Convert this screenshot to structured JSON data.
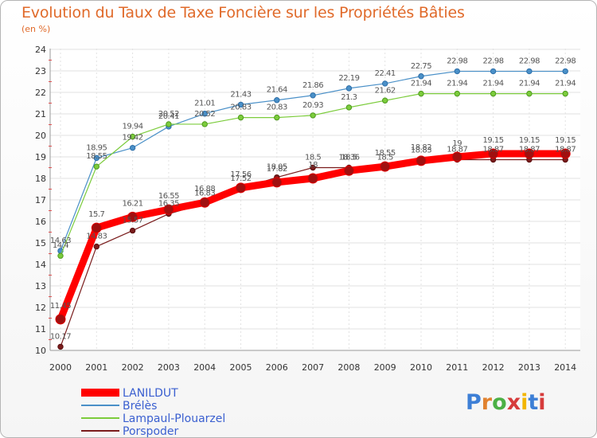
{
  "chart_data": {
    "type": "line",
    "title": "Evolution du Taux de Taxe Foncière sur les Propriétés Bâties",
    "ylabel": "(en %)",
    "xlabel": "",
    "ylim": [
      10,
      24
    ],
    "yticks": [
      "10",
      "11",
      "12",
      "13",
      "14",
      "15",
      "16",
      "17",
      "18",
      "19",
      "20",
      "21",
      "22",
      "23",
      "24"
    ],
    "categories": [
      "2000",
      "2001",
      "2002",
      "2003",
      "2004",
      "2005",
      "2006",
      "2007",
      "2008",
      "2009",
      "2010",
      "2011",
      "2012",
      "2013",
      "2014"
    ],
    "series": [
      {
        "name": "LANILDUT",
        "color": "#ff0000",
        "values": [
          11.45,
          15.7,
          16.21,
          16.55,
          16.88,
          17.56,
          17.82,
          18.0,
          18.36,
          18.55,
          18.82,
          19.0,
          19.15,
          19.15,
          19.15
        ],
        "labels": [
          "11.45",
          "15.7",
          "16.21",
          "16.55",
          "16.88",
          "17.56",
          "17.82",
          "18",
          "18.36",
          "18.55",
          "18.82",
          "19",
          "19.15",
          "19.15",
          "19.15"
        ]
      },
      {
        "name": "Brélès",
        "color": "#4a90c8",
        "values": [
          14.63,
          18.95,
          19.42,
          20.41,
          21.01,
          21.43,
          21.64,
          21.86,
          22.19,
          22.41,
          22.75,
          22.98,
          22.98,
          22.98,
          22.98
        ],
        "labels": [
          "14.63",
          "18.95",
          "19.42",
          "20.41",
          "21.01",
          "21.43",
          "21.64",
          "21.86",
          "22.19",
          "22.41",
          "22.75",
          "22.98",
          "22.98",
          "22.98",
          "22.98"
        ]
      },
      {
        "name": "Lampaul-Plouarzel",
        "color": "#7ccc3c",
        "values": [
          14.4,
          18.55,
          19.94,
          20.52,
          20.52,
          20.83,
          20.83,
          20.93,
          21.3,
          21.62,
          21.94,
          21.94,
          21.94,
          21.94,
          21.94
        ],
        "labels": [
          "14.4",
          "18.55",
          "19.94",
          "20.52",
          "20.52",
          "20.83",
          "20.83",
          "20.93",
          "21.3",
          "21.62",
          "21.94",
          "21.94",
          "21.94",
          "21.94",
          "21.94"
        ]
      },
      {
        "name": "Porspoder",
        "color": "#7a1c1c",
        "values": [
          10.17,
          14.83,
          15.57,
          16.35,
          16.83,
          17.52,
          18.05,
          18.5,
          18.5,
          18.5,
          18.83,
          18.87,
          18.87,
          18.87,
          18.87
        ],
        "labels": [
          "10.17",
          "14.83",
          "15.57",
          "16.35",
          "16.83",
          "17.52",
          "18.05",
          "18.5",
          "18.5",
          "18.5",
          "18.83",
          "18.87",
          "18.87",
          "18.87",
          "18.87"
        ]
      }
    ],
    "legend_placement": "bottom-left"
  },
  "branding": {
    "logo_letters": [
      "P",
      "r",
      "o",
      "x",
      "i",
      "t",
      "i"
    ],
    "logo_name": "Proxiti"
  }
}
